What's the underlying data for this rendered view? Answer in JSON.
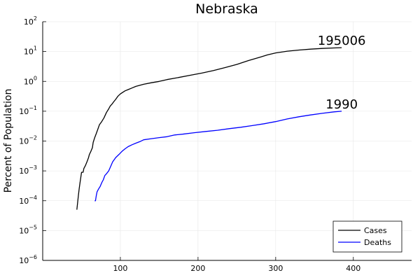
{
  "chart_data": {
    "type": "line",
    "title": "Nebraska",
    "xlabel": "",
    "ylabel": "Percent of Population",
    "x_ticks": [
      100,
      200,
      300,
      400
    ],
    "y_scale": "log10",
    "y_tick_exponents": [
      -6,
      -5,
      -4,
      -3,
      -2,
      -1,
      0,
      1,
      2
    ],
    "xlim": [
      0,
      475
    ],
    "ylim": [
      1e-06,
      100
    ],
    "grid": true,
    "legend_position": "bottom-right",
    "series": [
      {
        "name": "Cases",
        "color": "#000000",
        "x": [
          44,
          46,
          47,
          48,
          49,
          50,
          52,
          53,
          55,
          57,
          59,
          60,
          62,
          64,
          65,
          67,
          69,
          71,
          73,
          76,
          79,
          82,
          85,
          87,
          89,
          91,
          94,
          97,
          100,
          103,
          106,
          110,
          115,
          120,
          130,
          140,
          150,
          160,
          175,
          190,
          205,
          220,
          235,
          250,
          265,
          280,
          290,
          300,
          315,
          330,
          345,
          360,
          375,
          385
        ],
        "y": [
          5e-05,
          0.00015,
          0.00025,
          0.0004,
          0.0006,
          0.0009,
          0.0009,
          0.0012,
          0.0015,
          0.002,
          0.0028,
          0.0035,
          0.0045,
          0.006,
          0.009,
          0.013,
          0.018,
          0.025,
          0.035,
          0.045,
          0.06,
          0.09,
          0.12,
          0.15,
          0.17,
          0.2,
          0.25,
          0.32,
          0.38,
          0.43,
          0.48,
          0.53,
          0.6,
          0.68,
          0.8,
          0.9,
          1.0,
          1.15,
          1.35,
          1.6,
          1.9,
          2.3,
          2.9,
          3.7,
          5.0,
          6.5,
          7.8,
          9.0,
          10.3,
          11.2,
          12.0,
          12.7,
          13.2,
          13.5
        ],
        "end_label": "195006"
      },
      {
        "name": "Deaths",
        "color": "#0000ff",
        "x": [
          67,
          68,
          69,
          70,
          72,
          74,
          76,
          78,
          80,
          82,
          85,
          88,
          90,
          94,
          98,
          102,
          106,
          110,
          115,
          120,
          125,
          130,
          140,
          150,
          160,
          170,
          180,
          195,
          210,
          225,
          240,
          255,
          270,
          285,
          300,
          315,
          330,
          345,
          360,
          375,
          385
        ],
        "y": [
          0.0001,
          0.0001,
          0.00015,
          0.0002,
          0.00025,
          0.0003,
          0.0004,
          0.0005,
          0.0007,
          0.0008,
          0.001,
          0.0015,
          0.002,
          0.0028,
          0.0035,
          0.0045,
          0.0055,
          0.0065,
          0.0075,
          0.0085,
          0.0095,
          0.011,
          0.012,
          0.013,
          0.014,
          0.016,
          0.017,
          0.019,
          0.021,
          0.023,
          0.026,
          0.029,
          0.033,
          0.038,
          0.045,
          0.055,
          0.065,
          0.075,
          0.085,
          0.095,
          0.1
        ],
        "end_label": "1990"
      }
    ]
  }
}
